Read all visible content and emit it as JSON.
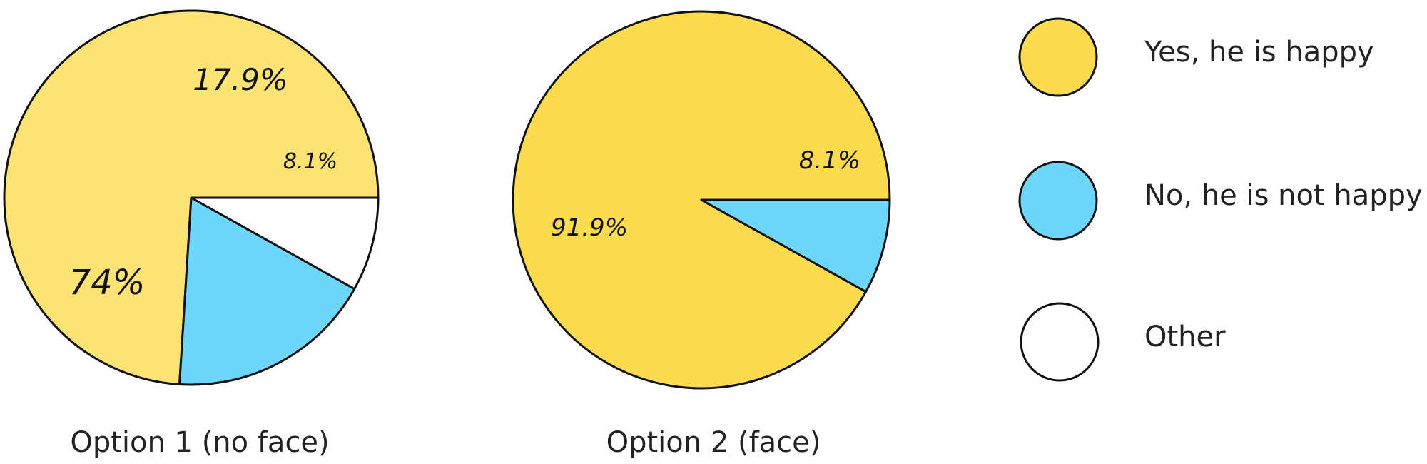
{
  "chart_data": [
    {
      "type": "pie",
      "title": "Option 1 (no face)",
      "slices": [
        {
          "label": "Yes, he is happy",
          "value": 74,
          "display": "74%",
          "color": "#fde274"
        },
        {
          "label": "No, he is not happy",
          "value": 17.9,
          "display": "17.9%",
          "color": "#6fd6fb"
        },
        {
          "label": "Other",
          "value": 8.1,
          "display": "8.1%",
          "color": "#ffffff"
        }
      ]
    },
    {
      "type": "pie",
      "title": "Option 2 (face)",
      "slices": [
        {
          "label": "Yes, he is happy",
          "value": 91.9,
          "display": "91.9%",
          "color": "#fddb4f"
        },
        {
          "label": "No, he is not happy",
          "value": 8.1,
          "display": "8.1%",
          "color": "#6fd6fb"
        }
      ]
    }
  ],
  "legend": {
    "placement": "right",
    "items": [
      {
        "label": "Yes, he is happy",
        "color": "#fddb4f"
      },
      {
        "label": "No, he is not happy",
        "color": "#6fd6fb"
      },
      {
        "label": "Other",
        "color": "#ffffff"
      }
    ]
  }
}
